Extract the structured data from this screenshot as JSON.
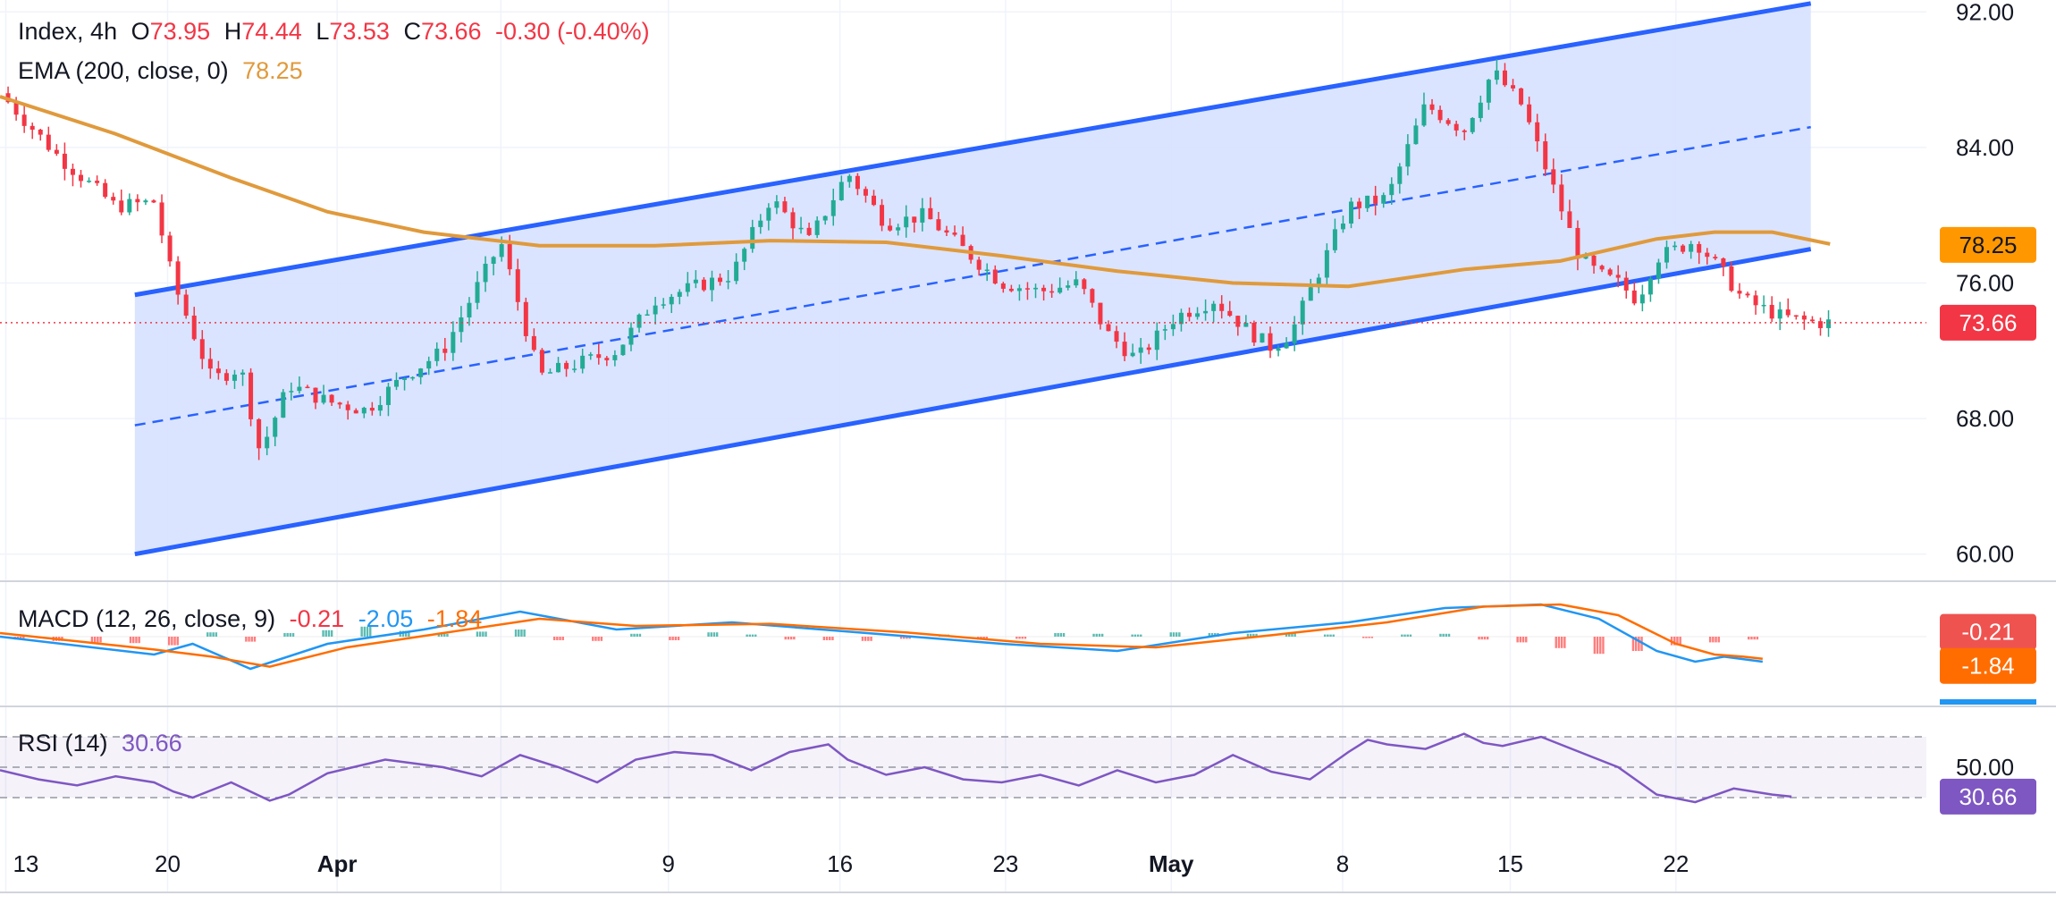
{
  "header": {
    "symbol": "Index, 4h",
    "o_label": "O",
    "o_value": "73.95",
    "h_label": "H",
    "h_value": "74.44",
    "l_label": "L",
    "l_value": "73.53",
    "c_label": "C",
    "c_value": "73.66",
    "change": "-0.30 (-0.40%)",
    "ema_label": "EMA (200, close, 0)",
    "ema_value": "78.25"
  },
  "colors": {
    "up": "#22ab94",
    "down": "#f23645",
    "channel_line": "#2962ff",
    "channel_fill": "#d6e1ff",
    "ema": "#e09a3c",
    "macd_line": "#2196f3",
    "signal_line": "#ff6d00",
    "rsi": "#7e57c2",
    "price_line": "#f23645"
  },
  "chart_data": [
    {
      "type": "candlestick",
      "title": "Index, 4h",
      "y_axis_ticks": [
        "92.00",
        "84.00",
        "76.00",
        "68.00",
        "60.00"
      ],
      "ylim": [
        58.4,
        92.7
      ],
      "x_tick_labels": [
        "13",
        "20",
        "Apr",
        "9",
        "16",
        "23",
        "May",
        "8",
        "15",
        "22"
      ],
      "ohlc_last": {
        "open": 73.95,
        "high": 74.44,
        "low": 73.53,
        "close": 73.66,
        "change": -0.3,
        "change_pct": -0.4
      },
      "price_marker": "73.66",
      "ema": {
        "name": "EMA (200, close, 0)",
        "marker": "78.25",
        "x": [
          0,
          6,
          12,
          17,
          22,
          28,
          34,
          40,
          46,
          52,
          58,
          64,
          70,
          76,
          81,
          86,
          89,
          92,
          95
        ],
        "y": [
          87.0,
          84.8,
          82.2,
          80.2,
          79.0,
          78.2,
          78.2,
          78.5,
          78.4,
          77.6,
          76.7,
          76.0,
          75.8,
          76.8,
          77.3,
          78.6,
          79.0,
          79.0,
          78.3
        ]
      },
      "channel": {
        "upper": {
          "x": [
            7,
            94
          ],
          "y": [
            75.3,
            92.5
          ]
        },
        "middle": {
          "x": [
            7,
            94
          ],
          "y": [
            67.6,
            85.2
          ]
        },
        "lower": {
          "x": [
            7,
            94
          ],
          "y": [
            60.0,
            78.0
          ]
        }
      },
      "close_path": {
        "x": [
          0,
          3,
          6,
          8,
          9,
          11,
          12.5,
          13.5,
          15,
          17,
          19,
          21,
          23,
          26,
          28,
          32,
          34,
          38,
          40,
          42,
          44,
          46,
          48,
          50,
          52,
          54,
          56,
          57.5,
          59,
          61,
          63,
          65,
          66,
          67,
          70,
          72,
          74,
          76,
          77.5,
          79,
          80.5,
          82,
          83,
          84,
          85,
          86,
          88,
          89.5,
          90.5,
          91.5,
          92.5,
          93.5,
          94.2,
          95
        ],
        "y": [
          87.2,
          83.5,
          80.5,
          80.8,
          76.0,
          70.3,
          71.0,
          66.0,
          70.0,
          69.0,
          68.5,
          70.5,
          72.0,
          78.4,
          70.5,
          72.0,
          75.0,
          76.5,
          81.0,
          78.5,
          82.5,
          79.5,
          80.0,
          78.0,
          76.0,
          75.5,
          76.0,
          73.0,
          71.5,
          74.0,
          75.0,
          73.0,
          72.2,
          73.0,
          80.5,
          81.0,
          86.5,
          85.0,
          88.5,
          86.5,
          82.0,
          77.5,
          76.5,
          76.0,
          75.0,
          77.5,
          78.5,
          76.5,
          75.0,
          74.5,
          74.0,
          73.8,
          73.66,
          73.66
        ]
      }
    },
    {
      "type": "line",
      "title": "MACD (12, 26, close, 9)",
      "values_shown": [
        "-0.21",
        "-2.05",
        "-1.84"
      ],
      "markers": [
        "-0.21",
        "-1.84"
      ],
      "series": [
        {
          "name": "MACD",
          "x": [
            0,
            8,
            10,
            13,
            17,
            22,
            27,
            32,
            38,
            45,
            52,
            58,
            64,
            70,
            75,
            80,
            83,
            86,
            88,
            89.5,
            91.5
          ],
          "y": [
            0.0,
            -2.5,
            -1.0,
            -4.5,
            -1.0,
            1.0,
            3.5,
            1.0,
            2.0,
            0.5,
            -1.0,
            -2.0,
            0.5,
            2.0,
            4.0,
            4.5,
            2.5,
            -2.0,
            -3.5,
            -2.8,
            -3.5
          ]
        },
        {
          "name": "Signal",
          "x": [
            0,
            8,
            11,
            14,
            18,
            23,
            28,
            33,
            40,
            47,
            54,
            60,
            66,
            72,
            77,
            81,
            84,
            87,
            89,
            90.5,
            91.5
          ],
          "y": [
            0.5,
            -1.8,
            -2.8,
            -4.2,
            -1.5,
            0.5,
            2.5,
            1.5,
            1.8,
            0.6,
            -1.0,
            -1.5,
            0.2,
            2.0,
            4.2,
            4.5,
            3.0,
            -1.0,
            -2.5,
            -2.8,
            -3.1
          ]
        }
      ],
      "histogram": {
        "x": [
          1,
          3,
          5,
          7,
          9,
          11,
          13,
          15,
          17,
          19,
          21,
          23,
          25,
          27,
          29,
          31,
          33,
          35,
          37,
          39,
          41,
          43,
          45,
          47,
          49,
          51,
          53,
          55,
          57,
          59,
          61,
          63,
          65,
          67,
          69,
          71,
          73,
          75,
          77,
          79,
          81,
          83,
          85,
          87,
          89,
          91
        ],
        "y": [
          -0.4,
          -0.6,
          -0.8,
          -0.9,
          -1.2,
          0.6,
          -0.7,
          0.5,
          0.9,
          1.4,
          0.8,
          0.4,
          0.7,
          1.0,
          -0.5,
          -0.6,
          0.4,
          -0.5,
          0.6,
          0.3,
          -0.4,
          -0.5,
          -0.6,
          -0.3,
          0.3,
          -0.4,
          -0.3,
          0.5,
          0.4,
          0.3,
          0.6,
          0.5,
          0.4,
          0.5,
          0.3,
          -0.2,
          0.3,
          0.4,
          -0.4,
          -0.8,
          -1.6,
          -2.4,
          -2.0,
          -1.2,
          -0.8,
          -0.4
        ]
      }
    },
    {
      "type": "line",
      "title": "RSI (14)",
      "value_shown": "30.66",
      "y_axis_ticks": [
        "50.00"
      ],
      "marker": "30.66",
      "series": [
        {
          "name": "RSI",
          "x": [
            0,
            2,
            4,
            6,
            8,
            9,
            10,
            12,
            14,
            15,
            17,
            20,
            23,
            25,
            27,
            29,
            31,
            33,
            35,
            37,
            39,
            41,
            43,
            44,
            46,
            48,
            50,
            52,
            54,
            56,
            58,
            60,
            62,
            64,
            66,
            68,
            70,
            71,
            72,
            74,
            76,
            77,
            78,
            80,
            82,
            84,
            86,
            88,
            90,
            92,
            93
          ],
          "y": [
            48,
            42,
            38,
            44,
            40,
            34,
            30,
            40,
            28,
            32,
            46,
            55,
            50,
            44,
            58,
            50,
            40,
            55,
            60,
            58,
            48,
            60,
            65,
            55,
            45,
            50,
            42,
            40,
            45,
            38,
            48,
            40,
            45,
            58,
            47,
            42,
            60,
            68,
            65,
            62,
            72,
            66,
            64,
            70,
            60,
            50,
            32,
            27,
            36,
            32,
            30.66
          ]
        }
      ]
    }
  ]
}
